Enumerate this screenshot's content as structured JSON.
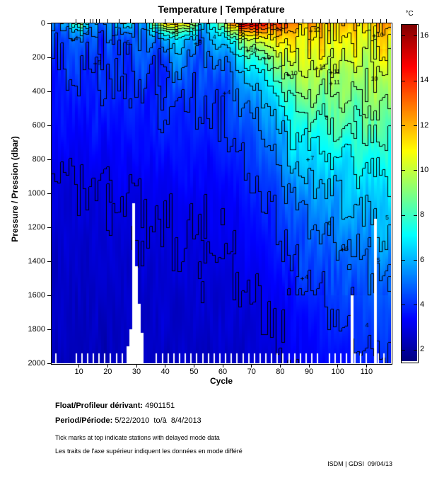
{
  "title": "Temperature | Température",
  "axes": {
    "x": {
      "label": "Cycle",
      "min": 0.5,
      "max": 118.5,
      "ticks": [
        10,
        20,
        30,
        40,
        50,
        60,
        70,
        80,
        90,
        100,
        110
      ]
    },
    "y": {
      "label": "Pressure / Pression (dbar)",
      "min": 0,
      "max": 2000,
      "direction": "down",
      "ticks": [
        0,
        200,
        400,
        600,
        800,
        1000,
        1200,
        1400,
        1600,
        1800,
        2000
      ]
    }
  },
  "colorbar": {
    "unit": "°C",
    "colormap": "jet",
    "min": 1.5,
    "max": 16.5,
    "ticks": [
      2,
      4,
      6,
      8,
      10,
      12,
      14,
      16
    ]
  },
  "chart_data": {
    "type": "heatmap",
    "title": "Temperature | Température",
    "xlabel": "Cycle",
    "ylabel": "Pressure / Pression (dbar)",
    "x_range": [
      1,
      118
    ],
    "y_range": [
      0,
      2000
    ],
    "value_unit": "°C",
    "value_range": [
      1.5,
      16.5
    ],
    "contour_interval_c": 1,
    "pressure_nodes": [
      0,
      50,
      100,
      200,
      300,
      400,
      500,
      700,
      900,
      1100,
      1400,
      1700,
      2000
    ],
    "profiles": [
      {
        "cycle": 1,
        "temps": [
          4.5,
          4.2,
          4.1,
          4.0,
          3.9,
          3.7,
          3.5,
          3.2,
          3.0,
          2.8,
          2.6,
          2.5,
          2.4
        ]
      },
      {
        "cycle": 6,
        "temps": [
          6.5,
          5.0,
          4.4,
          4.1,
          4.0,
          3.8,
          3.6,
          3.3,
          3.0,
          2.8,
          2.6,
          2.5,
          2.4
        ]
      },
      {
        "cycle": 10,
        "temps": [
          7.5,
          5.5,
          4.6,
          4.2,
          4.0,
          3.8,
          3.6,
          3.3,
          3.0,
          2.8,
          2.6,
          2.5,
          2.4
        ]
      },
      {
        "cycle": 15,
        "temps": [
          6.0,
          5.2,
          4.6,
          4.2,
          4.0,
          3.9,
          3.7,
          3.4,
          3.1,
          2.9,
          2.7,
          2.5,
          2.4
        ]
      },
      {
        "cycle": 21,
        "temps": [
          4.8,
          4.5,
          4.3,
          4.1,
          4.0,
          3.9,
          3.7,
          3.4,
          3.1,
          2.9,
          2.7,
          2.5,
          2.4
        ]
      },
      {
        "cycle": 27,
        "temps": [
          6.8,
          5.2,
          4.6,
          4.3,
          4.1,
          3.9,
          3.7,
          3.4,
          3.2,
          2.9,
          2.7,
          2.5,
          2.4
        ]
      },
      {
        "cycle": 33,
        "temps": [
          5.2,
          4.7,
          4.4,
          4.2,
          4.1,
          3.9,
          3.8,
          3.5,
          3.2,
          3.0,
          2.8,
          2.6,
          2.5
        ]
      },
      {
        "cycle": 38,
        "temps": [
          9.5,
          6.5,
          5.3,
          4.6,
          4.3,
          4.1,
          3.9,
          3.6,
          3.3,
          3.0,
          2.8,
          2.6,
          2.5
        ]
      },
      {
        "cycle": 43,
        "temps": [
          12.5,
          8.5,
          6.2,
          5.0,
          4.6,
          4.3,
          4.0,
          3.7,
          3.4,
          3.1,
          2.8,
          2.6,
          2.5
        ]
      },
      {
        "cycle": 48,
        "temps": [
          11.0,
          8.0,
          6.0,
          5.0,
          4.6,
          4.3,
          4.1,
          3.7,
          3.4,
          3.1,
          2.9,
          2.7,
          2.5
        ]
      },
      {
        "cycle": 54,
        "temps": [
          6.5,
          5.8,
          5.2,
          4.7,
          4.4,
          4.2,
          4.0,
          3.7,
          3.4,
          3.1,
          2.9,
          2.7,
          2.5
        ]
      },
      {
        "cycle": 60,
        "temps": [
          8.5,
          6.8,
          5.8,
          5.0,
          4.7,
          4.4,
          4.2,
          3.8,
          3.5,
          3.2,
          3.0,
          2.7,
          2.6
        ]
      },
      {
        "cycle": 66,
        "temps": [
          15.5,
          11.5,
          8.8,
          6.8,
          5.8,
          5.2,
          4.8,
          4.2,
          3.8,
          3.4,
          3.1,
          2.8,
          2.6
        ]
      },
      {
        "cycle": 72,
        "temps": [
          15.0,
          12.5,
          10.2,
          8.0,
          6.8,
          6.0,
          5.4,
          4.6,
          4.1,
          3.7,
          3.3,
          2.9,
          2.7
        ]
      },
      {
        "cycle": 78,
        "temps": [
          14.0,
          12.0,
          10.8,
          9.2,
          8.0,
          7.0,
          6.2,
          5.2,
          4.5,
          4.0,
          3.5,
          3.1,
          2.8
        ]
      },
      {
        "cycle": 84,
        "temps": [
          13.0,
          12.0,
          11.2,
          10.4,
          9.6,
          8.8,
          8.0,
          6.6,
          5.6,
          4.8,
          4.0,
          3.4,
          3.0
        ]
      },
      {
        "cycle": 90,
        "temps": [
          12.3,
          11.6,
          11.1,
          10.5,
          9.9,
          9.2,
          8.4,
          7.0,
          6.0,
          5.2,
          4.2,
          3.6,
          3.2
        ]
      },
      {
        "cycle": 96,
        "temps": [
          11.8,
          11.3,
          10.9,
          10.3,
          9.7,
          9.1,
          8.5,
          7.3,
          6.3,
          5.5,
          4.5,
          3.9,
          3.4
        ]
      },
      {
        "cycle": 103,
        "temps": [
          11.5,
          11.1,
          10.7,
          10.2,
          9.6,
          9.1,
          8.5,
          7.5,
          6.6,
          5.8,
          4.8,
          4.1,
          3.6
        ]
      },
      {
        "cycle": 110,
        "temps": [
          11.6,
          11.1,
          10.6,
          10.1,
          9.7,
          9.2,
          8.7,
          7.8,
          6.9,
          6.0,
          5.1,
          4.3,
          3.8
        ]
      },
      {
        "cycle": 118,
        "temps": [
          12.2,
          11.4,
          10.8,
          10.2,
          9.7,
          9.3,
          8.8,
          7.9,
          7.1,
          6.3,
          5.4,
          4.5,
          3.9
        ]
      }
    ],
    "contour_labels": [
      {
        "c": 9,
        "p": 95,
        "t": "4",
        "plus": true
      },
      {
        "c": 13,
        "p": 58,
        "t": "4",
        "plus": false
      },
      {
        "c": 17,
        "p": 235,
        "t": "5",
        "plus": true
      },
      {
        "c": 27,
        "p": 120,
        "t": "5",
        "plus": false
      },
      {
        "c": 44,
        "p": 55,
        "t": "5",
        "plus": true
      },
      {
        "c": 50,
        "p": 28,
        "t": "2",
        "plus": false
      },
      {
        "c": 52,
        "p": 118,
        "t": "5",
        "plus": true
      },
      {
        "c": 57,
        "p": 85,
        "t": "4",
        "plus": false
      },
      {
        "c": 67,
        "p": 68,
        "t": "6",
        "plus": false
      },
      {
        "c": 79,
        "p": 38,
        "t": "12",
        "plus": false
      },
      {
        "c": 92,
        "p": 44,
        "t": "12",
        "plus": true
      },
      {
        "c": 70,
        "p": 160,
        "t": "10",
        "plus": true
      },
      {
        "c": 76,
        "p": 205,
        "t": "9",
        "plus": true
      },
      {
        "c": 84,
        "p": 300,
        "t": "10",
        "plus": true
      },
      {
        "c": 94,
        "p": 262,
        "t": "11",
        "plus": true
      },
      {
        "c": 99,
        "p": 288,
        "t": "11",
        "plus": true
      },
      {
        "c": 99,
        "p": 352,
        "t": "11",
        "plus": true
      },
      {
        "c": 114,
        "p": 72,
        "t": "10",
        "plus": true
      },
      {
        "c": 112,
        "p": 330,
        "t": "10",
        "plus": false
      },
      {
        "c": 96,
        "p": 560,
        "t": "8",
        "plus": false
      },
      {
        "c": 91,
        "p": 800,
        "t": "7",
        "plus": true
      },
      {
        "c": 97,
        "p": 1180,
        "t": "6",
        "plus": false
      },
      {
        "c": 103,
        "p": 1330,
        "t": "6",
        "plus": true
      },
      {
        "c": 89,
        "p": 1500,
        "t": "4",
        "plus": true
      },
      {
        "c": 114,
        "p": 1400,
        "t": "5",
        "plus": false
      },
      {
        "c": 117,
        "p": 1150,
        "t": "5",
        "plus": false
      },
      {
        "c": 110,
        "p": 1780,
        "t": "4",
        "plus": false
      },
      {
        "c": 30,
        "p": 1850,
        "t": "3",
        "plus": false
      },
      {
        "c": 62,
        "p": 410,
        "t": "4",
        "plus": true
      }
    ],
    "missing_data": {
      "deep_gaps": [
        {
          "cycle": 27,
          "from_dbar": 1900
        },
        {
          "cycle": 28,
          "from_dbar": 1800
        },
        {
          "cycle": 29,
          "from_dbar": 1060
        },
        {
          "cycle": 30,
          "from_dbar": 1430
        },
        {
          "cycle": 31,
          "from_dbar": 1650
        },
        {
          "cycle": 32,
          "from_dbar": 1820
        },
        {
          "cycle": 105,
          "from_dbar": 1600
        },
        {
          "cycle": 113,
          "from_dbar": 1150
        }
      ],
      "bottom_gap_cycles": [
        2,
        9,
        11,
        13,
        15,
        17,
        19,
        21,
        23,
        25,
        27,
        37,
        39,
        41,
        43,
        45,
        47,
        49,
        51,
        53,
        55,
        57,
        59,
        61,
        63,
        65,
        67,
        69,
        71,
        73,
        75,
        77,
        79,
        81,
        83,
        85,
        87,
        89,
        91,
        93,
        97,
        99,
        101,
        103,
        106,
        108,
        110,
        114,
        116
      ],
      "bottom_gap_from_dbar": 1940
    },
    "delayed_mode_cycles": [
      9,
      12,
      14,
      15,
      16,
      17,
      20,
      24,
      28,
      33,
      36,
      40,
      43,
      46,
      49,
      52,
      55,
      58,
      61,
      64,
      67,
      70,
      73,
      76,
      79,
      82,
      85,
      88,
      91,
      94,
      97,
      100,
      103,
      106,
      109,
      112,
      115,
      117
    ]
  },
  "footer": {
    "float_label": "Float/Profileur dérivant:",
    "float_value": " 4901151",
    "period_label": "Period/Période:",
    "period_value": " 5/22/2010  to/à  8/4/2013",
    "note_en": "Tick marks at top indicate stations with delayed mode data",
    "note_fr": "Les traits de l'axe supérieur indiquent les données en mode différé",
    "credit": "ISDM | GDSI  09/04/13"
  }
}
